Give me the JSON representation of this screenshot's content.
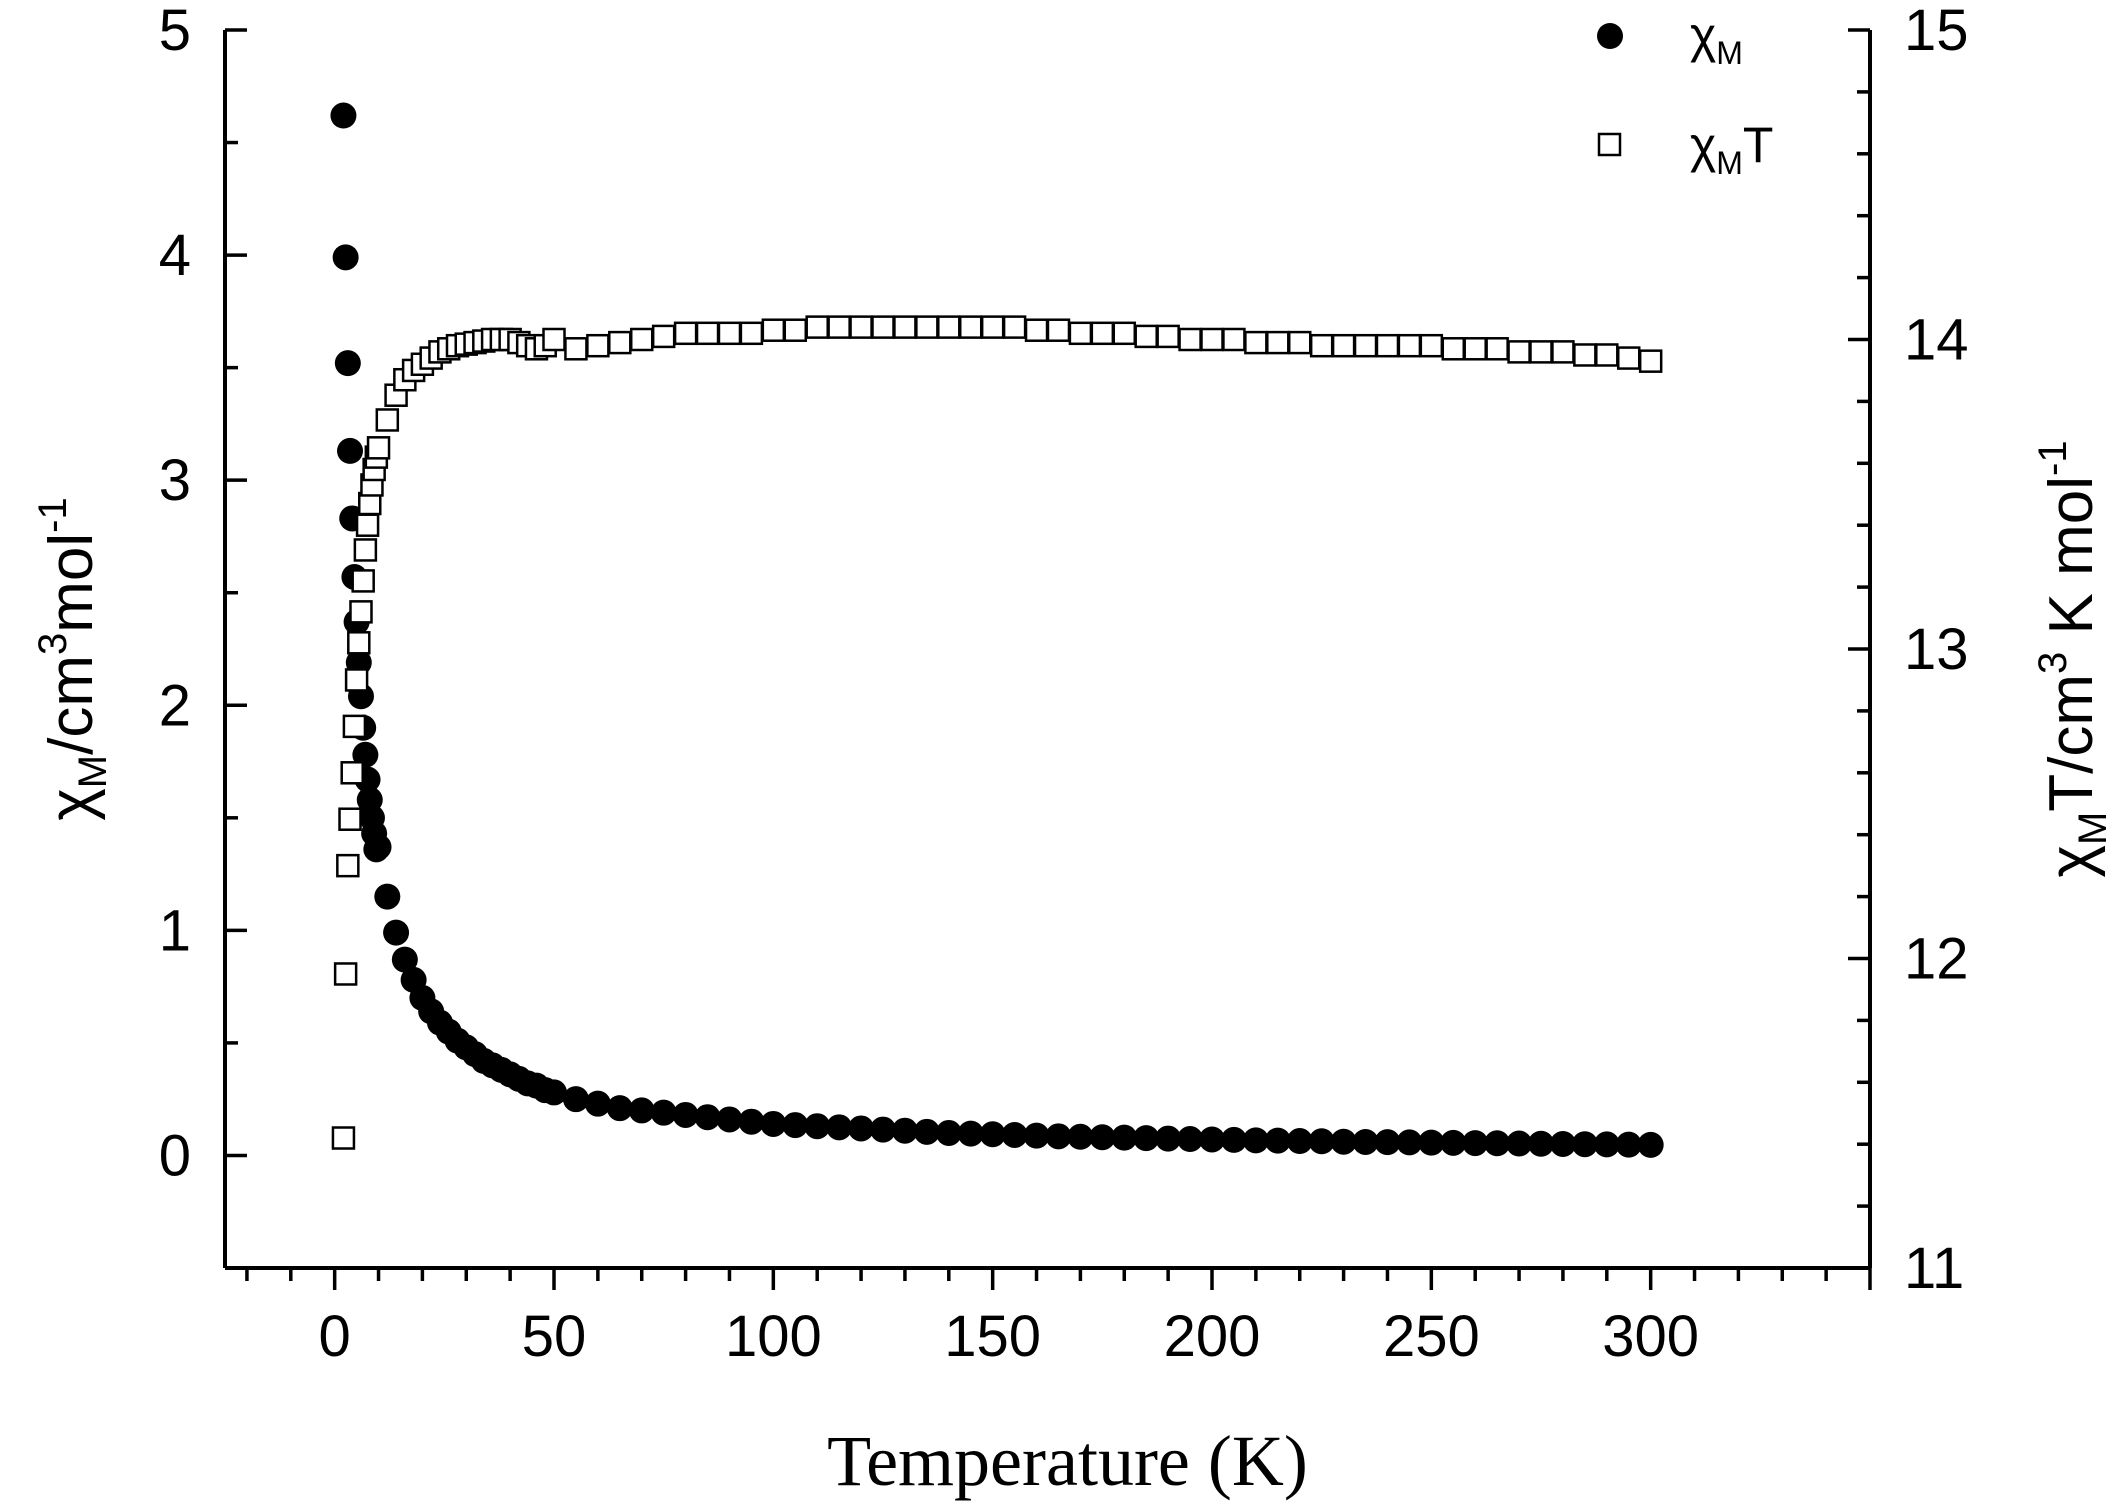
{
  "chart_data": {
    "type": "scatter",
    "title": "",
    "xlabel": "Temperature (K)",
    "ylabel_left": {
      "base": "χ",
      "sub": "M",
      "rest1": "/cm",
      "sup": "3",
      "rest2": "mol",
      "sup2": "-1"
    },
    "ylabel_right": {
      "base": "χ",
      "sub": "M",
      "rest1": "T/cm",
      "sup": "3",
      "rest2": " K mol",
      "sup2": "-1"
    },
    "xlim": [
      -25,
      350
    ],
    "ylim_left": [
      -0.5,
      5
    ],
    "ylim_right": [
      11,
      15
    ],
    "xticks": [
      0,
      50,
      100,
      150,
      200,
      250,
      300
    ],
    "yticks_left": [
      0,
      1,
      2,
      3,
      4,
      5
    ],
    "yticks_right": [
      11,
      12,
      13,
      14,
      15
    ],
    "legend_position": "top-right",
    "series": [
      {
        "name": "χM",
        "legend": {
          "base": "χ",
          "sub": "M",
          "rest": ""
        },
        "marker": "filled-circle",
        "axis": "left",
        "x": [
          2,
          2.5,
          3,
          3.5,
          4,
          4.5,
          5,
          5.5,
          6,
          6.5,
          7,
          7.5,
          8,
          8.5,
          9,
          9.5,
          10,
          12,
          14,
          16,
          18,
          20,
          22,
          24,
          26,
          28,
          30,
          32,
          34,
          36,
          38,
          40,
          42,
          44,
          46,
          48,
          50,
          55,
          60,
          65,
          70,
          75,
          80,
          85,
          90,
          95,
          100,
          105,
          110,
          115,
          120,
          125,
          130,
          135,
          140,
          145,
          150,
          155,
          160,
          165,
          170,
          175,
          180,
          185,
          190,
          195,
          200,
          205,
          210,
          215,
          220,
          225,
          230,
          235,
          240,
          245,
          250,
          255,
          260,
          265,
          270,
          275,
          280,
          285,
          290,
          295,
          300
        ],
        "y": [
          4.62,
          3.99,
          3.52,
          3.13,
          2.83,
          2.57,
          2.37,
          2.19,
          2.04,
          1.9,
          1.78,
          1.67,
          1.58,
          1.5,
          1.43,
          1.36,
          1.37,
          1.15,
          0.99,
          0.87,
          0.78,
          0.7,
          0.64,
          0.59,
          0.55,
          0.51,
          0.48,
          0.45,
          0.42,
          0.4,
          0.38,
          0.36,
          0.34,
          0.32,
          0.31,
          0.29,
          0.28,
          0.25,
          0.23,
          0.21,
          0.2,
          0.19,
          0.18,
          0.17,
          0.16,
          0.15,
          0.14,
          0.135,
          0.13,
          0.125,
          0.12,
          0.115,
          0.11,
          0.105,
          0.1,
          0.097,
          0.094,
          0.091,
          0.088,
          0.085,
          0.083,
          0.081,
          0.079,
          0.077,
          0.075,
          0.073,
          0.071,
          0.069,
          0.067,
          0.066,
          0.064,
          0.063,
          0.061,
          0.06,
          0.059,
          0.058,
          0.057,
          0.056,
          0.055,
          0.054,
          0.053,
          0.052,
          0.051,
          0.05,
          0.049,
          0.048,
          0.047
        ]
      },
      {
        "name": "χMT",
        "legend": {
          "base": "χ",
          "sub": "M",
          "rest": "T"
        },
        "marker": "open-square",
        "axis": "right",
        "x": [
          2,
          2.5,
          3,
          3.5,
          4,
          4.5,
          5,
          5.5,
          6,
          6.5,
          7,
          7.5,
          8,
          8.5,
          9,
          9.5,
          10,
          12,
          14,
          16,
          18,
          20,
          22,
          24,
          26,
          28,
          30,
          32,
          34,
          36,
          38,
          40,
          42,
          44,
          46,
          48,
          50,
          55,
          60,
          65,
          70,
          75,
          80,
          85,
          90,
          95,
          100,
          105,
          110,
          115,
          120,
          125,
          130,
          135,
          140,
          145,
          150,
          155,
          160,
          165,
          170,
          175,
          180,
          185,
          190,
          195,
          200,
          205,
          210,
          215,
          220,
          225,
          230,
          235,
          240,
          245,
          250,
          255,
          260,
          265,
          270,
          275,
          280,
          285,
          290,
          295,
          300
        ],
        "y": [
          11.42,
          11.95,
          12.3,
          12.45,
          12.6,
          12.75,
          12.9,
          13.02,
          13.12,
          13.22,
          13.32,
          13.4,
          13.47,
          13.53,
          13.58,
          13.62,
          13.65,
          13.74,
          13.82,
          13.87,
          13.9,
          13.92,
          13.94,
          13.96,
          13.97,
          13.98,
          13.985,
          13.99,
          13.995,
          14.0,
          14.0,
          14.0,
          13.99,
          13.98,
          13.97,
          13.98,
          14.0,
          13.97,
          13.98,
          13.99,
          14.0,
          14.01,
          14.02,
          14.02,
          14.02,
          14.02,
          14.03,
          14.03,
          14.04,
          14.04,
          14.04,
          14.04,
          14.04,
          14.04,
          14.04,
          14.04,
          14.04,
          14.04,
          14.03,
          14.03,
          14.02,
          14.02,
          14.02,
          14.01,
          14.01,
          14.0,
          14.0,
          14.0,
          13.99,
          13.99,
          13.99,
          13.98,
          13.98,
          13.98,
          13.98,
          13.98,
          13.98,
          13.97,
          13.97,
          13.97,
          13.96,
          13.96,
          13.96,
          13.95,
          13.95,
          13.94,
          13.93
        ]
      }
    ]
  }
}
